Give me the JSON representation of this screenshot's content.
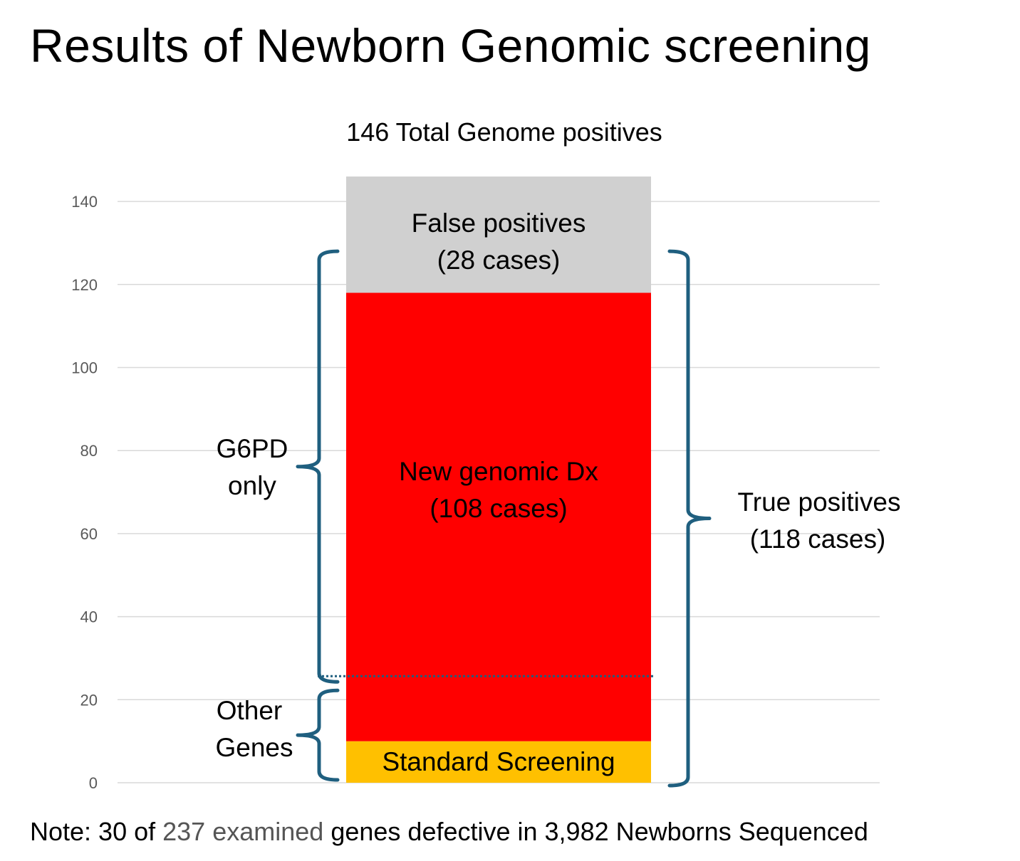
{
  "title": "Results of Newborn Genomic screening",
  "footnote": {
    "prefix": "Note: 30 of",
    "highlight": "237 examined",
    "suffix": "genes defective in 3,982 Newborns Sequenced"
  },
  "colors": {
    "false_positive": "#d0d0d0",
    "new_genomic": "#ff0000",
    "standard_screening": "#ffc000",
    "bracket": "#1f5f7f",
    "grid": "#d9d9d9",
    "tick_label": "#595959",
    "divider": "#1f5f7f"
  },
  "chart_data": {
    "type": "bar",
    "stacked": true,
    "title": "146 Total Genome positives",
    "ylim": [
      0,
      140
    ],
    "yticks": [
      0,
      20,
      40,
      60,
      80,
      100,
      120,
      140
    ],
    "grid": true,
    "segments": [
      {
        "name": "Standard Screening",
        "value": 10,
        "label": "Standard Screening"
      },
      {
        "name": "New genomic Dx",
        "value": 108,
        "label": "New genomic Dx (108 cases)"
      },
      {
        "name": "False positives",
        "value": 28,
        "label": "False positives (28 cases)"
      }
    ],
    "g6pd_boundary": 26,
    "annotations": {
      "left_top": {
        "label": "G6PD only",
        "from": 26,
        "to": 128
      },
      "left_bottom": {
        "label": "Other Genes",
        "from": 0,
        "to": 26
      },
      "right": {
        "label": "True positives (118 cases)",
        "from": 0,
        "to": 128
      }
    },
    "segment_text": {
      "false_line1": "False positives",
      "false_line2": "(28 cases)",
      "new_line1": "New genomic Dx",
      "new_line2": "(108 cases)",
      "standard": "Standard Screening",
      "g6pd_line1": "G6PD",
      "g6pd_line2": "only",
      "other_line1": "Other",
      "other_line2": "Genes",
      "true_line1": "True positives",
      "true_line2": "(118 cases)"
    }
  }
}
